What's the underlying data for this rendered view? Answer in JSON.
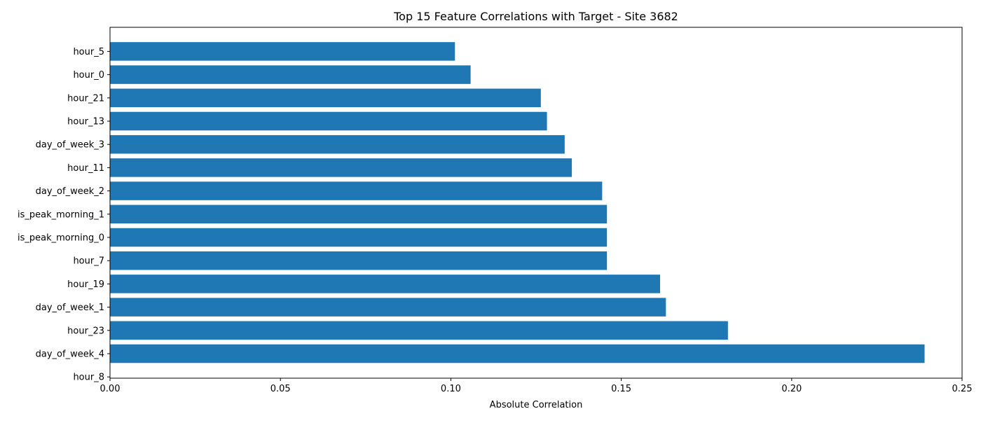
{
  "chart_data": {
    "type": "bar",
    "orientation": "horizontal",
    "title": "Top 15 Feature Correlations with Target - Site 3682",
    "xlabel": "Absolute Correlation",
    "ylabel": "",
    "categories": [
      "hour_5",
      "hour_0",
      "hour_21",
      "hour_13",
      "day_of_week_3",
      "hour_11",
      "day_of_week_2",
      "is_peak_morning_1",
      "is_peak_morning_0",
      "hour_7",
      "hour_19",
      "day_of_week_1",
      "hour_23",
      "day_of_week_4",
      "hour_8"
    ],
    "values": [
      0.1012,
      0.1058,
      0.1264,
      0.1282,
      0.1334,
      0.1355,
      0.1444,
      0.1458,
      0.1458,
      0.1458,
      0.1614,
      0.1631,
      0.1813,
      0.239,
      0
    ],
    "xlim": [
      0,
      0.25
    ],
    "xticks": [
      "0.00",
      "0.05",
      "0.10",
      "0.15",
      "0.20",
      "0.25"
    ],
    "bar_color": "#1f77b4",
    "grid": false,
    "legend": "none"
  }
}
